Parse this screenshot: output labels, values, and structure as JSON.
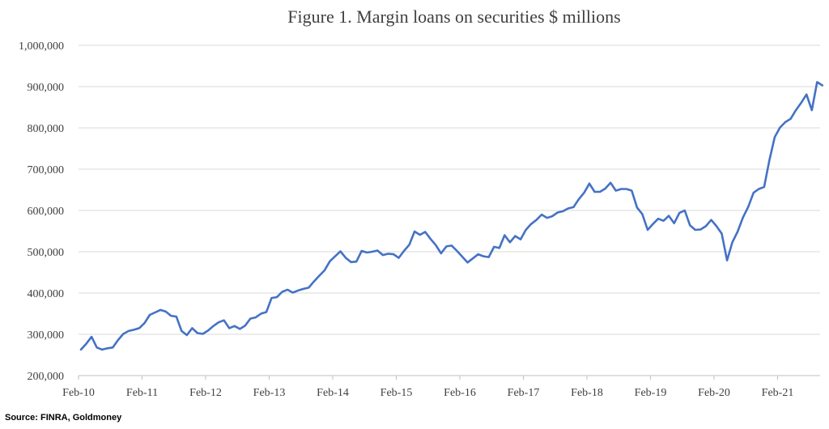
{
  "chart_data": {
    "type": "line",
    "title": "Figure 1. Margin loans on securities $ millions",
    "source": "Source: FINRA, Goldmoney",
    "ylim": [
      200000,
      1000000
    ],
    "y_ticks": [
      "1,000,000",
      "900,000",
      "800,000",
      "700,000",
      "600,000",
      "500,000",
      "400,000",
      "300,000",
      "200,000"
    ],
    "y_tick_values": [
      1000000,
      900000,
      800000,
      700000,
      600000,
      500000,
      400000,
      300000,
      200000
    ],
    "x_ticks": [
      "Feb-10",
      "Feb-11",
      "Feb-12",
      "Feb-13",
      "Feb-14",
      "Feb-15",
      "Feb-16",
      "Feb-17",
      "Feb-18",
      "Feb-19",
      "Feb-20",
      "Feb-21"
    ],
    "x_start": "Feb-10",
    "grid": true,
    "legend": "none",
    "color": "#4472c4",
    "series": [
      {
        "values": [
          263000,
          277000,
          294000,
          268000,
          263000,
          266000,
          268000,
          286000,
          301000,
          308000,
          311000,
          315000,
          327000,
          347000,
          353000,
          359000,
          355000,
          345000,
          343000,
          308000,
          298000,
          315000,
          303000,
          301000,
          309000,
          320000,
          329000,
          334000,
          315000,
          320000,
          313000,
          321000,
          338000,
          341000,
          350000,
          354000,
          388000,
          390000,
          403000,
          408000,
          401000,
          406000,
          410000,
          413000,
          428000,
          442000,
          455000,
          477000,
          489000,
          501000,
          485000,
          475000,
          476000,
          502000,
          498000,
          500000,
          503000,
          492000,
          495000,
          494000,
          485000,
          502000,
          517000,
          549000,
          541000,
          548000,
          531000,
          516000,
          496000,
          513000,
          515000,
          502000,
          488000,
          474000,
          484000,
          494000,
          489000,
          487000,
          512000,
          509000,
          540000,
          523000,
          538000,
          530000,
          553000,
          567000,
          577000,
          590000,
          582000,
          586000,
          595000,
          598000,
          605000,
          608000,
          627000,
          643000,
          665000,
          645000,
          645000,
          653000,
          667000,
          648000,
          652000,
          652000,
          648000,
          607000,
          591000,
          553000,
          567000,
          580000,
          575000,
          587000,
          569000,
          594000,
          600000,
          564000,
          553000,
          554000,
          562000,
          577000,
          562000,
          544000,
          479000,
          523000,
          549000,
          583000,
          609000,
          643000,
          652000,
          657000,
          722000,
          778000,
          801000,
          814000,
          822000,
          843000,
          861000,
          881000,
          843000,
          911000,
          903000
        ]
      }
    ]
  }
}
